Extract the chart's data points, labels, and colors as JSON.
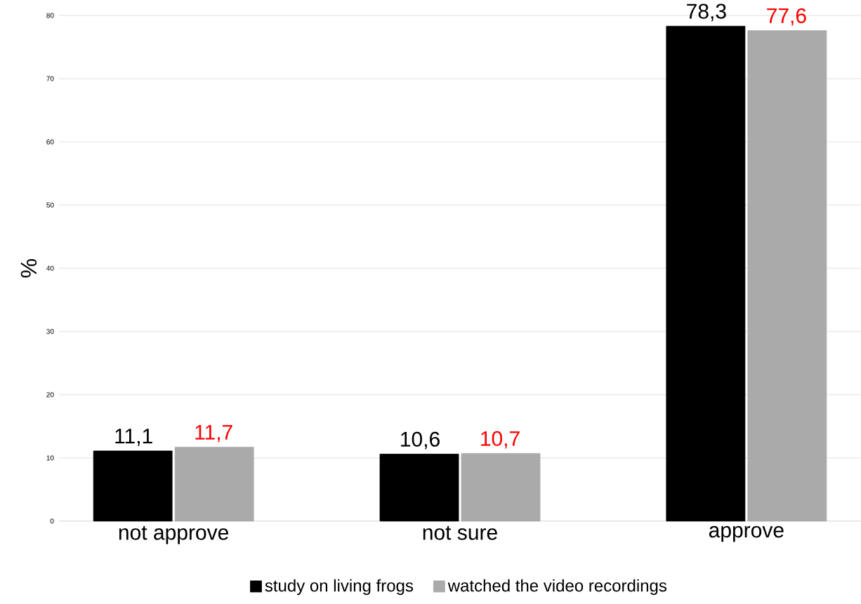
{
  "chart_data": {
    "type": "bar",
    "ylabel": "%",
    "categories": [
      "not approve",
      "not sure",
      "approve"
    ],
    "series": [
      {
        "name": "study on living frogs",
        "color": "#000000",
        "values": [
          11.1,
          10.6,
          78.3
        ],
        "value_labels": [
          "11,1",
          "10,6",
          "78,3"
        ]
      },
      {
        "name": "watched the video recordings",
        "color": "#aaaaaa",
        "values": [
          11.7,
          10.7,
          77.6
        ],
        "value_labels": [
          "11,7",
          "10,7",
          "77,6"
        ]
      }
    ],
    "ylim": [
      0,
      80
    ],
    "yticks": [
      0,
      10,
      20,
      30,
      40,
      50,
      60,
      70,
      80
    ],
    "grid": "y",
    "legend": "bottom"
  }
}
